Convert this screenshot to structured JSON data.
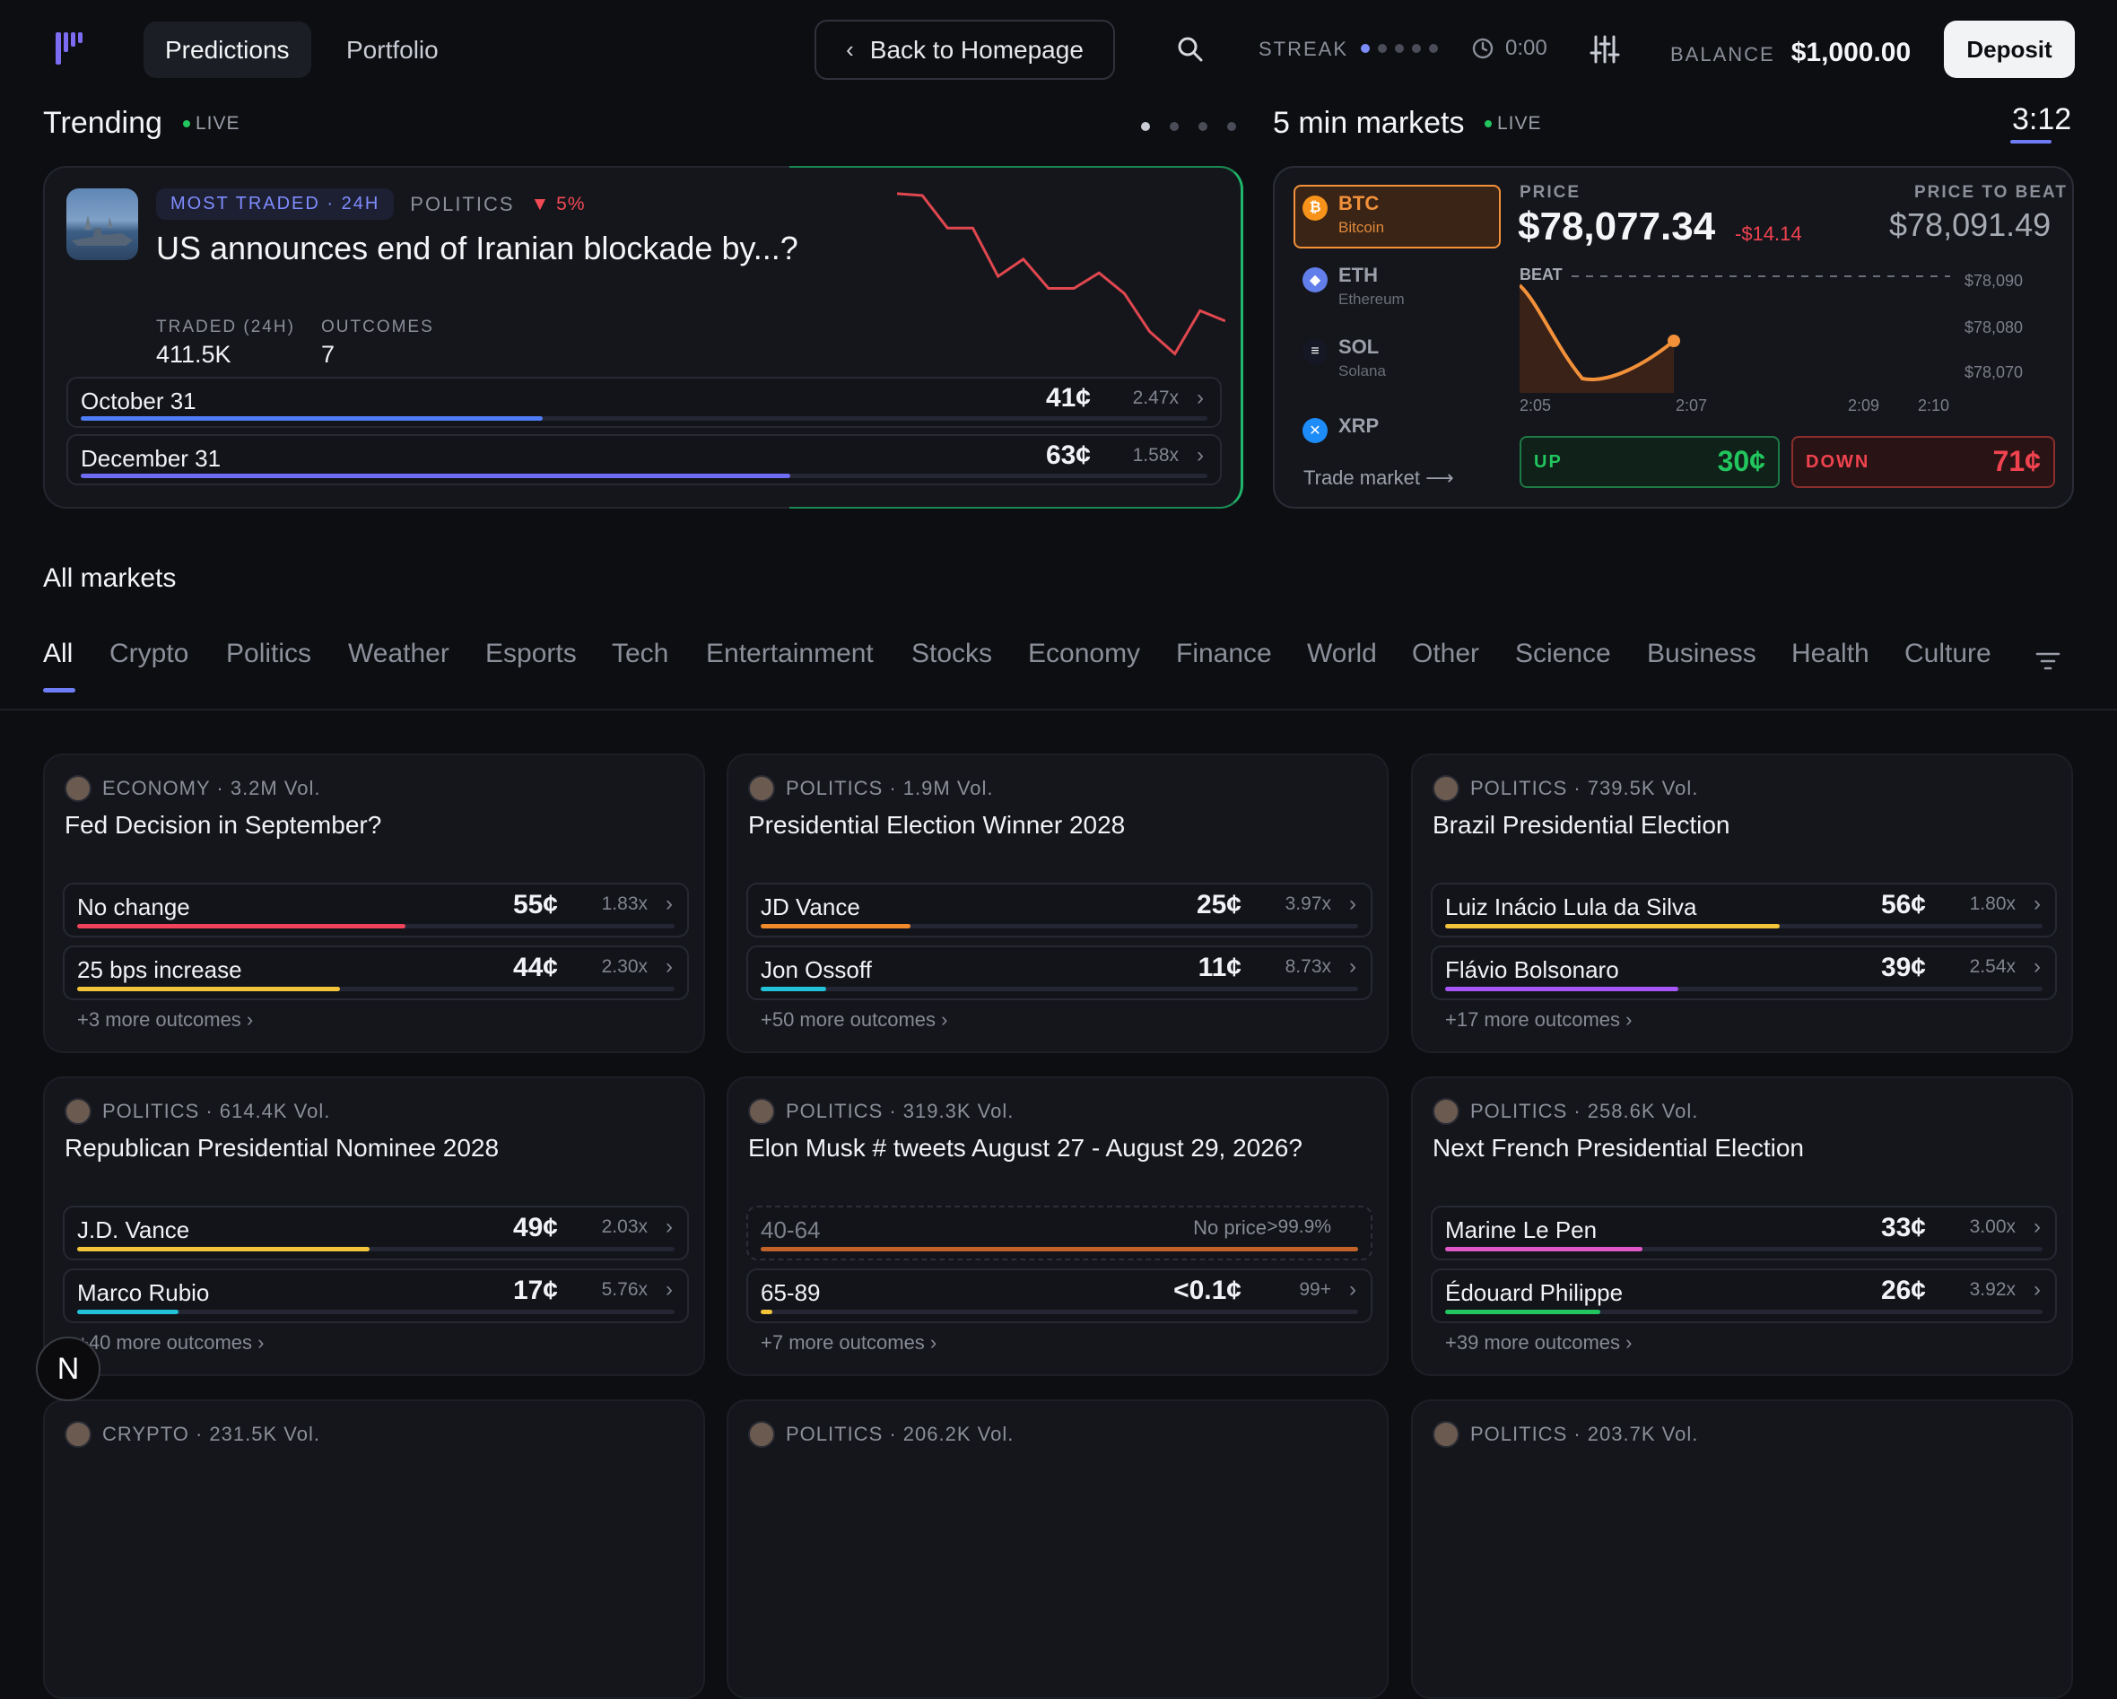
{
  "nav": {
    "tabs": [
      "Predictions",
      "Portfolio"
    ],
    "back_label": "Back to Homepage",
    "streak_label": "STREAK",
    "timer": "0:00",
    "balance_label": "BALANCE",
    "balance": "$1,000.00",
    "deposit_label": "Deposit"
  },
  "trending": {
    "title": "Trending",
    "live": "LIVE",
    "badge": "MOST TRADED · 24H",
    "category": "POLITICS",
    "change": "▼ 5%",
    "question": "US announces end of Iranian blockade by...?",
    "traded_label": "TRADED (24H)",
    "traded": "411.5K",
    "outcomes_label": "OUTCOMES",
    "outcomes": "7",
    "rows": [
      {
        "label": "October 31",
        "price": "41¢",
        "mult": "2.47x",
        "fill": 0.41,
        "color": "#4f7df5"
      },
      {
        "label": "December 31",
        "price": "63¢",
        "mult": "1.58x",
        "fill": 0.63,
        "color": "#6e6cf2"
      }
    ],
    "sparkline": [
      0.98,
      0.97,
      0.78,
      0.78,
      0.5,
      0.6,
      0.43,
      0.43,
      0.52,
      0.4,
      0.18,
      0.05,
      0.3,
      0.24
    ]
  },
  "five_min": {
    "title": "5 min markets",
    "live": "LIVE",
    "countdown": "3:12",
    "coins": [
      {
        "sym": "BTC",
        "name": "Bitcoin",
        "color": "#f7931a",
        "glyph": "₿"
      },
      {
        "sym": "ETH",
        "name": "Ethereum",
        "color": "#627eea",
        "glyph": "◆"
      },
      {
        "sym": "SOL",
        "name": "Solana",
        "color": "#151824",
        "glyph": "≡"
      },
      {
        "sym": "XRP",
        "name": "",
        "color": "#1d8cf8",
        "glyph": "✕"
      }
    ],
    "trade_link": "Trade market ⟶",
    "price_label": "PRICE",
    "price": "$78,077.34",
    "delta": "-$14.14",
    "beat_label": "PRICE TO BEAT",
    "beat_price": "$78,091.49",
    "beat_tag": "BEAT",
    "y_ticks": [
      "$78,090",
      "$78,080",
      "$78,070"
    ],
    "x_ticks": [
      "2:05",
      "2:07",
      "2:09",
      "2:10"
    ],
    "up_label": "UP",
    "up_price": "30¢",
    "down_label": "DOWN",
    "down_price": "71¢"
  },
  "all_markets": {
    "title": "All markets",
    "tabs": [
      "All",
      "Crypto",
      "Politics",
      "Weather",
      "Esports",
      "Tech",
      "Entertainment",
      "Stocks",
      "Economy",
      "Finance",
      "World",
      "Other",
      "Science",
      "Business",
      "Health",
      "Culture"
    ]
  },
  "markets": [
    {
      "meta": "ECONOMY · 3.2M Vol.",
      "title": "Fed Decision in September?",
      "more": "+3 more outcomes ›",
      "rows": [
        {
          "label": "No change",
          "price": "55¢",
          "mult": "1.83x",
          "fill": 0.55,
          "color": "#f0435b"
        },
        {
          "label": "25 bps increase",
          "price": "44¢",
          "mult": "2.30x",
          "fill": 0.44,
          "color": "#f2c43a"
        }
      ]
    },
    {
      "meta": "POLITICS · 1.9M Vol.",
      "title": "Presidential Election Winner 2028",
      "more": "+50 more outcomes ›",
      "rows": [
        {
          "label": "JD Vance",
          "price": "25¢",
          "mult": "3.97x",
          "fill": 0.25,
          "color": "#f08a2a"
        },
        {
          "label": "Jon Ossoff",
          "price": "11¢",
          "mult": "8.73x",
          "fill": 0.11,
          "color": "#22c3d8"
        }
      ]
    },
    {
      "meta": "POLITICS · 739.5K Vol.",
      "title": "Brazil Presidential Election",
      "more": "+17 more outcomes ›",
      "rows": [
        {
          "label": "Luiz Inácio Lula da Silva",
          "price": "56¢",
          "mult": "1.80x",
          "fill": 0.56,
          "color": "#f2c43a"
        },
        {
          "label": "Flávio Bolsonaro",
          "price": "39¢",
          "mult": "2.54x",
          "fill": 0.39,
          "color": "#a855f7"
        }
      ]
    },
    {
      "meta": "POLITICS · 614.4K Vol.",
      "title": "Republican Presidential Nominee 2028",
      "more": "+40 more outcomes ›",
      "rows": [
        {
          "label": "J.D. Vance",
          "price": "49¢",
          "mult": "2.03x",
          "fill": 0.49,
          "color": "#f2c43a"
        },
        {
          "label": "Marco Rubio",
          "price": "17¢",
          "mult": "5.76x",
          "fill": 0.17,
          "color": "#22c3d8"
        }
      ]
    },
    {
      "meta": "POLITICS · 319.3K Vol.",
      "title": "Elon Musk # tweets August 27 - August 29, 2026?",
      "more": "+7 more outcomes ›",
      "rows": [
        {
          "label": "40-64",
          "price": "No price",
          "mult": ">99.9%",
          "fill": 1.0,
          "color": "#c2622a",
          "dim": true
        },
        {
          "label": "65-89",
          "price": "<0.1¢",
          "mult": "99+",
          "fill": 0.02,
          "color": "#f2c43a"
        }
      ]
    },
    {
      "meta": "POLITICS · 258.6K Vol.",
      "title": "Next French Presidential Election",
      "more": "+39 more outcomes ›",
      "rows": [
        {
          "label": "Marine Le Pen",
          "price": "33¢",
          "mult": "3.00x",
          "fill": 0.33,
          "color": "#e058c8"
        },
        {
          "label": "Édouard Philippe",
          "price": "26¢",
          "mult": "3.92x",
          "fill": 0.26,
          "color": "#22c55e"
        }
      ]
    },
    {
      "meta": "CRYPTO · 231.5K Vol.",
      "title": "",
      "more": "",
      "rows": []
    },
    {
      "meta": "POLITICS · 206.2K Vol.",
      "title": "",
      "more": "",
      "rows": []
    },
    {
      "meta": "POLITICS · 203.7K Vol.",
      "title": "",
      "more": "",
      "rows": []
    }
  ]
}
